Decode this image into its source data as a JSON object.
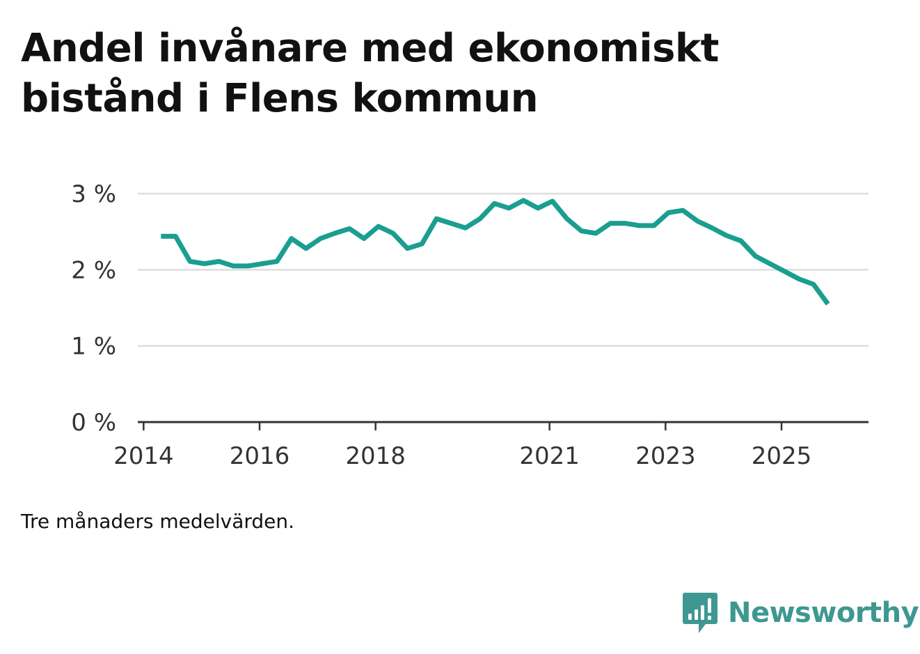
{
  "chart_data": {
    "type": "line",
    "title": "Andel invånare med ekonomiskt bistånd i Flens kommun",
    "note": "Tre månaders medelvärden.",
    "xlabel": "",
    "ylabel": "",
    "ylim": [
      0,
      3
    ],
    "xlim": [
      2013.9,
      2026.5
    ],
    "yticks": [
      {
        "value": 0,
        "label": "0 %"
      },
      {
        "value": 1,
        "label": "1 %"
      },
      {
        "value": 2,
        "label": "2 %"
      },
      {
        "value": 3,
        "label": "3 %"
      }
    ],
    "xticks": [
      {
        "value": 2014,
        "label": "2014"
      },
      {
        "value": 2016,
        "label": "2016"
      },
      {
        "value": 2018,
        "label": "2018"
      },
      {
        "value": 2021,
        "label": "2021"
      },
      {
        "value": 2023,
        "label": "2023"
      },
      {
        "value": 2025,
        "label": "2025"
      }
    ],
    "grid": true,
    "series": [
      {
        "name": "Andel invånare med ekonomiskt bistånd",
        "color": "#1a9e91",
        "x": [
          2014.3,
          2014.55,
          2014.8,
          2015.05,
          2015.3,
          2015.55,
          2015.8,
          2016.05,
          2016.3,
          2016.55,
          2016.8,
          2017.05,
          2017.3,
          2017.55,
          2017.8,
          2018.05,
          2018.3,
          2018.55,
          2018.8,
          2019.05,
          2019.3,
          2019.55,
          2019.8,
          2020.05,
          2020.3,
          2020.55,
          2020.8,
          2021.05,
          2021.3,
          2021.55,
          2021.8,
          2022.05,
          2022.3,
          2022.55,
          2022.8,
          2023.05,
          2023.3,
          2023.55,
          2023.8,
          2024.05,
          2024.3,
          2024.55,
          2024.8,
          2025.05,
          2025.3,
          2025.55,
          2025.8
        ],
        "values": [
          2.44,
          2.44,
          2.11,
          2.08,
          2.11,
          2.05,
          2.05,
          2.08,
          2.11,
          2.41,
          2.28,
          2.41,
          2.48,
          2.54,
          2.41,
          2.57,
          2.48,
          2.28,
          2.34,
          2.67,
          2.61,
          2.55,
          2.67,
          2.87,
          2.81,
          2.91,
          2.81,
          2.9,
          2.67,
          2.51,
          2.48,
          2.61,
          2.61,
          2.58,
          2.58,
          2.75,
          2.78,
          2.64,
          2.55,
          2.45,
          2.38,
          2.18,
          2.08,
          1.98,
          1.88,
          1.81,
          1.55
        ]
      }
    ]
  },
  "brand": {
    "name": "Newsworthy",
    "icon": "newsworthy-logo-icon",
    "color": "#3e9891"
  },
  "colors": {
    "line": "#1a9e91",
    "grid": "#dddddd",
    "axis": "#333333",
    "text": "#111111"
  }
}
